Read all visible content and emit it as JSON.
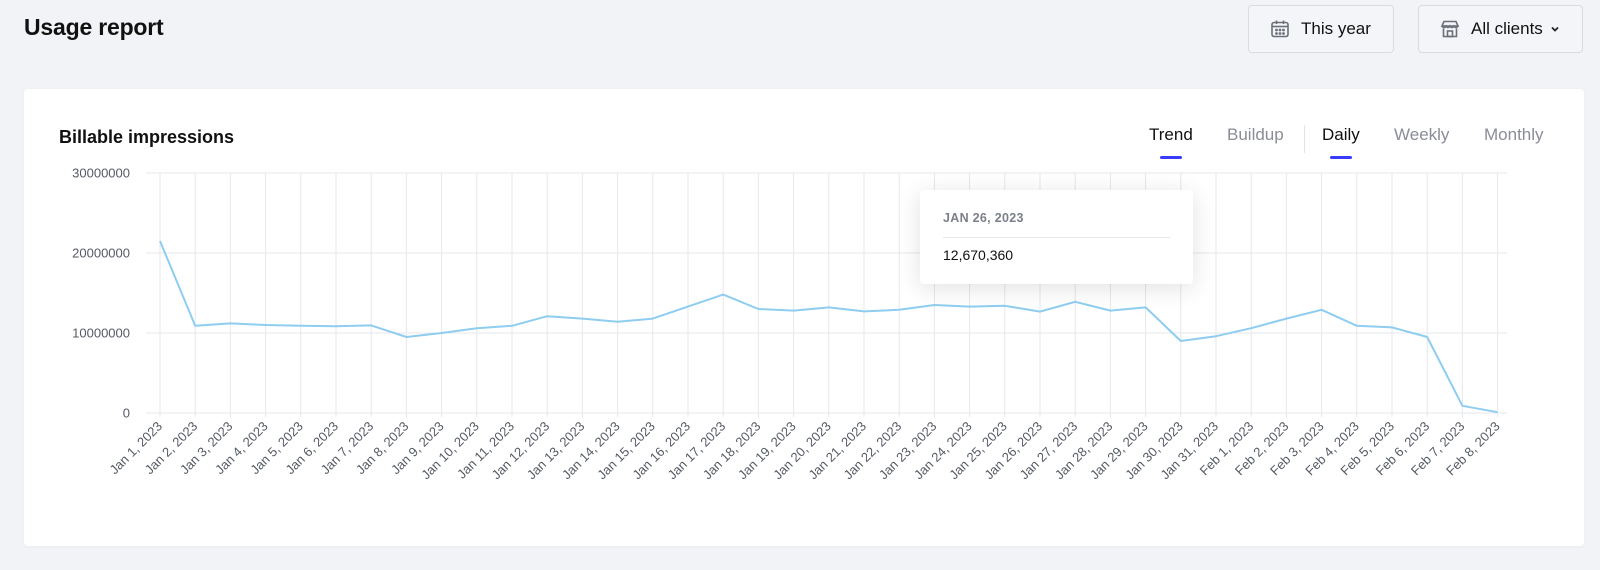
{
  "header": {
    "title": "Usage report",
    "date_filter": {
      "label": "This year",
      "icon": "calendar-icon"
    },
    "client_filter": {
      "label": "All clients",
      "icon": "store-icon"
    }
  },
  "card": {
    "title": "Billable impressions",
    "tabs": [
      {
        "label": "Trend",
        "active": true
      },
      {
        "label": "Buildup",
        "active": false
      },
      {
        "label": "Daily",
        "active": true
      },
      {
        "label": "Weekly",
        "active": false
      },
      {
        "label": "Monthly",
        "active": false
      }
    ],
    "tooltip": {
      "date": "JAN 26, 2023",
      "value": "12,670,360"
    }
  },
  "colors": {
    "line": "#8ecdf0",
    "accent": "#3b3bff",
    "grid": "#e6e7eb"
  },
  "chart_data": {
    "type": "line",
    "x": [
      "Jan 1, 2023",
      "Jan 2, 2023",
      "Jan 3, 2023",
      "Jan 4, 2023",
      "Jan 5, 2023",
      "Jan 6, 2023",
      "Jan 7, 2023",
      "Jan 8, 2023",
      "Jan 9, 2023",
      "Jan 10, 2023",
      "Jan 11, 2023",
      "Jan 12, 2023",
      "Jan 13, 2023",
      "Jan 14, 2023",
      "Jan 15, 2023",
      "Jan 16, 2023",
      "Jan 17, 2023",
      "Jan 18, 2023",
      "Jan 19, 2023",
      "Jan 20, 2023",
      "Jan 21, 2023",
      "Jan 22, 2023",
      "Jan 23, 2023",
      "Jan 24, 2023",
      "Jan 25, 2023",
      "Jan 26, 2023",
      "Jan 27, 2023",
      "Jan 28, 2023",
      "Jan 29, 2023",
      "Jan 30, 2023",
      "Jan 31, 2023",
      "Feb 1, 2023",
      "Feb 2, 2023",
      "Feb 3, 2023",
      "Feb 4, 2023",
      "Feb 5, 2023",
      "Feb 6, 2023",
      "Feb 7, 2023",
      "Feb 8, 2023"
    ],
    "series": [
      {
        "name": "",
        "values": [
          21500000,
          10900000,
          11200000,
          11000000,
          10900000,
          10850000,
          10950000,
          9500000,
          10000000,
          10600000,
          10900000,
          12100000,
          11800000,
          11400000,
          11800000,
          13300000,
          14800000,
          13000000,
          12800000,
          13200000,
          12700000,
          12900000,
          13500000,
          13300000,
          13400000,
          12670360,
          13900000,
          12800000,
          13200000,
          9000000,
          9600000,
          10600000,
          11800000,
          12900000,
          10900000,
          10700000,
          9500000,
          900000,
          100000
        ]
      }
    ],
    "yticks": [
      0,
      10000000,
      20000000,
      30000000
    ],
    "ylim": [
      0,
      30000000
    ],
    "grid": true
  }
}
